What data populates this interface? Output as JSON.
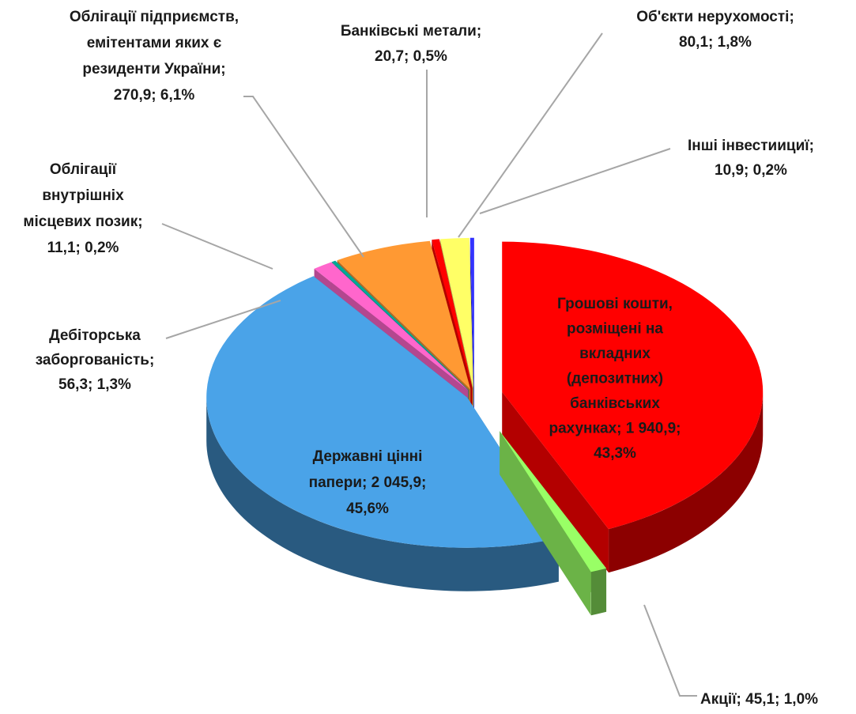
{
  "chart_data": {
    "type": "pie3d",
    "categories": [
      "Грошові кошти, розміщені на вкладних (депозитних) банківських рахунках",
      "Акції",
      "Державні цінні папери",
      "Дебіторська заборгованість",
      "Облігації внутрішніх місцевих позик",
      "Облігації підприємств, емітентами яких є резиденти України",
      "Банківські метали",
      "Об'єкти нерухомості",
      "Інші інвестиициї"
    ],
    "values": [
      1940.9,
      45.1,
      2045.9,
      56.3,
      11.1,
      270.9,
      20.7,
      80.1,
      10.9
    ],
    "percents": [
      43.3,
      1.0,
      45.6,
      1.3,
      0.2,
      6.1,
      0.5,
      1.8,
      0.2
    ],
    "labels": [
      [
        "Грошові кошти,",
        "розміщені на",
        "вкладних",
        "(депозитних)",
        "банківських",
        "рахунках; 1 940,9;",
        "43,3%"
      ],
      [
        "Акції; 45,1; 1,0%"
      ],
      [
        "Державні цінні",
        "папери; 2 045,9;",
        "45,6%"
      ],
      [
        "Дебіторська",
        "заборгованість;",
        "56,3; 1,3%"
      ],
      [
        "Облігації",
        "внутрішніх",
        "місцевих позик;",
        "11,1; 0,2%"
      ],
      [
        "Облігації підприємств,",
        "емітентами яких є",
        "резиденти України;",
        "270,9; 6,1%"
      ],
      [
        "Банківські метали;",
        "20,7; 0,5%"
      ],
      [
        "Об'єкти нерухомості;",
        "80,1; 1,8%"
      ],
      [
        "Інші інвестиициї;",
        "10,9; 0,2%"
      ]
    ],
    "colors": [
      "#ff0000",
      "#99ff66",
      "#4aa3e8",
      "#ff66cc",
      "#00a896",
      "#ff9933",
      "#ff0000",
      "#ffff66",
      "#3333ff"
    ]
  }
}
